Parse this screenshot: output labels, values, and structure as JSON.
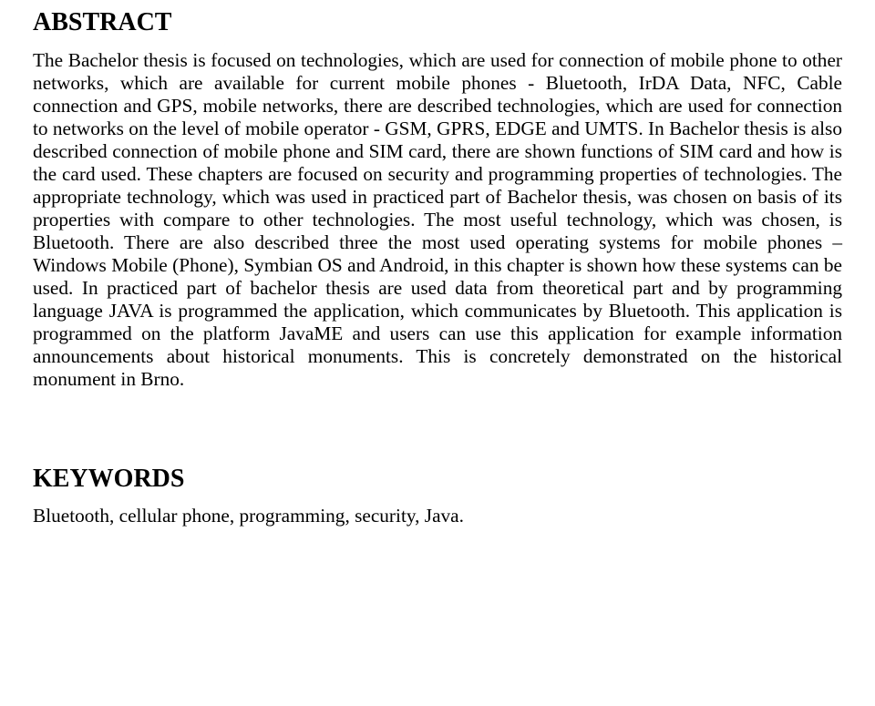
{
  "abstract": {
    "heading": "ABSTRACT",
    "body": "The Bachelor thesis is focused on technologies, which are used for connection of mobile phone to other networks, which are available for current mobile phones - Bluetooth, IrDA Data, NFC, Cable connection and GPS, mobile networks, there are described technologies, which are used for connection to networks on the level of mobile operator - GSM, GPRS, EDGE and UMTS. In Bachelor thesis is also described connection of mobile phone and SIM card, there are shown functions of SIM card and how is the card used. These chapters are focused on security and programming properties of technologies. The appropriate technology, which was used in practiced part of Bachelor thesis, was chosen on basis of its properties with compare to other technologies. The most useful technology, which was chosen, is Bluetooth. There are also described three the most used operating systems for mobile phones – Windows Mobile (Phone), Symbian OS and Android, in this chapter is shown how these systems can be used. In practiced part of bachelor thesis are used data from theoretical part and by programming language JAVA is programmed the application, which communicates by Bluetooth. This application is programmed on the platform JavaME and users can use this application for example information announcements about historical monuments. This is concretely demonstrated on the historical monument in Brno."
  },
  "keywords": {
    "heading": "KEYWORDS",
    "body": "Bluetooth, cellular phone, programming, security, Java."
  }
}
